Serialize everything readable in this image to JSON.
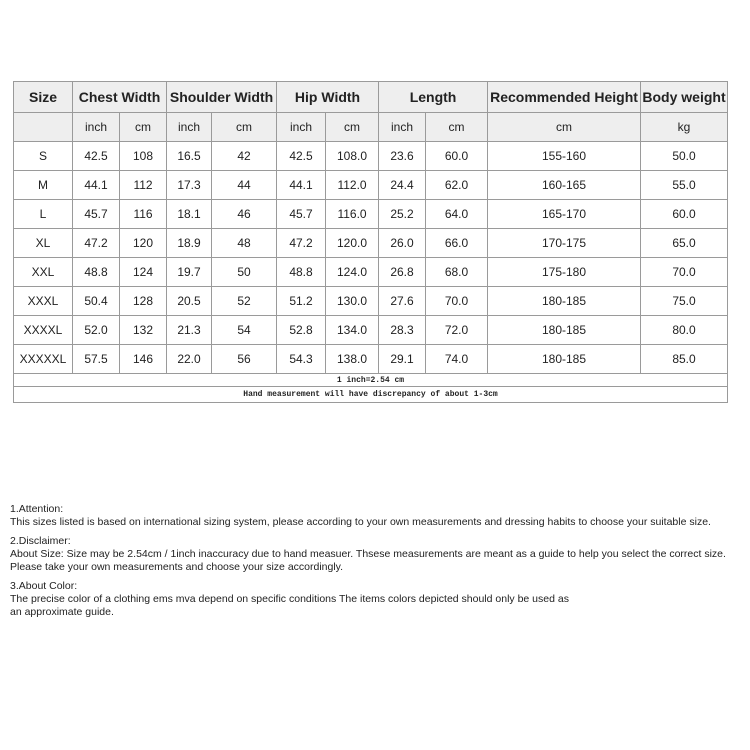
{
  "headers": [
    "Size",
    "Chest Width",
    "Shoulder Width",
    "Hip Width",
    "Length",
    "Recommended Height",
    "Body weight"
  ],
  "units": [
    "",
    "inch",
    "cm",
    "inch",
    "cm",
    "inch",
    "cm",
    "inch",
    "cm",
    "cm",
    "kg"
  ],
  "rows": [
    [
      "S",
      "42.5",
      "108",
      "16.5",
      "42",
      "42.5",
      "108.0",
      "23.6",
      "60.0",
      "155-160",
      "50.0"
    ],
    [
      "M",
      "44.1",
      "112",
      "17.3",
      "44",
      "44.1",
      "112.0",
      "24.4",
      "62.0",
      "160-165",
      "55.0"
    ],
    [
      "L",
      "45.7",
      "116",
      "18.1",
      "46",
      "45.7",
      "116.0",
      "25.2",
      "64.0",
      "165-170",
      "60.0"
    ],
    [
      "XL",
      "47.2",
      "120",
      "18.9",
      "48",
      "47.2",
      "120.0",
      "26.0",
      "66.0",
      "170-175",
      "65.0"
    ],
    [
      "XXL",
      "48.8",
      "124",
      "19.7",
      "50",
      "48.8",
      "124.0",
      "26.8",
      "68.0",
      "175-180",
      "70.0"
    ],
    [
      "XXXL",
      "50.4",
      "128",
      "20.5",
      "52",
      "51.2",
      "130.0",
      "27.6",
      "70.0",
      "180-185",
      "75.0"
    ],
    [
      "XXXXL",
      "52.0",
      "132",
      "21.3",
      "54",
      "52.8",
      "134.0",
      "28.3",
      "72.0",
      "180-185",
      "80.0"
    ],
    [
      "XXXXXL",
      "57.5",
      "146",
      "22.0",
      "56",
      "54.3",
      "138.0",
      "29.1",
      "74.0",
      "180-185",
      "85.0"
    ]
  ],
  "note_conversion": "1 inch=2.54 cm",
  "note_measurement": "Hand measurement will have discrepancy of about 1-3cm",
  "notes": [
    {
      "title": "1.Attention:",
      "lines": [
        "This sizes listed is based on international sizing system, please according to your own measurements and dressing habits to choose your suitable size."
      ]
    },
    {
      "title": "2.Disclaimer:",
      "lines": [
        "About Size: Size may be 2.54cm / 1inch inaccuracy due to hand measuer. Thsese measurements are meant as a guide to help you select the correct size.",
        "Please take your own measurements and choose your size accordingly."
      ]
    },
    {
      "title": "3.About Color:",
      "lines": [
        "The precise color of a clothing ems mva depend on specific conditions The items colors depicted should only be used as",
        "an approximate guide."
      ]
    }
  ]
}
